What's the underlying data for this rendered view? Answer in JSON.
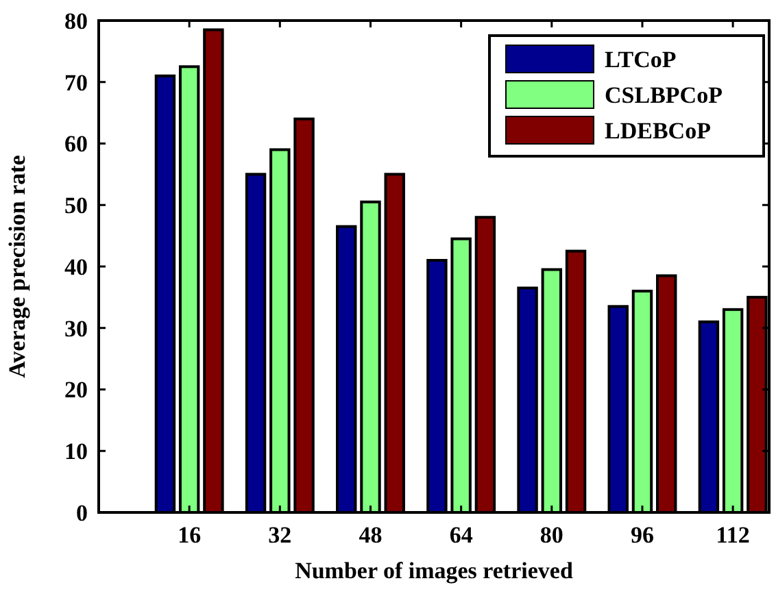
{
  "chart_data": {
    "type": "bar",
    "xlabel": "Number of images retrieved",
    "ylabel": "Average precision rate",
    "categories": [
      "16",
      "32",
      "48",
      "64",
      "80",
      "96",
      "112"
    ],
    "series": [
      {
        "name": "LTCoP",
        "color": "#00008f",
        "values": [
          71,
          55,
          46.5,
          41,
          36.5,
          33.5,
          31
        ]
      },
      {
        "name": "CSLBPCoP",
        "color": "#80ff80",
        "values": [
          72.5,
          59,
          50.5,
          44.5,
          39.5,
          36,
          33
        ]
      },
      {
        "name": "LDEBCoP",
        "color": "#800000",
        "values": [
          78.5,
          64,
          55,
          48,
          42.5,
          38.5,
          35
        ]
      }
    ],
    "ylim": [
      0,
      80
    ],
    "yticks": [
      0,
      10,
      20,
      30,
      40,
      50,
      60,
      70,
      80
    ],
    "grid": false,
    "legend": "top right"
  }
}
